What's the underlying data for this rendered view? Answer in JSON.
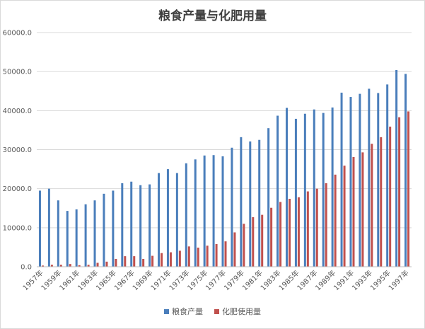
{
  "chart_data": {
    "type": "bar",
    "title": "粮食产量与化肥用量",
    "categories": [
      "1957年",
      "1958年",
      "1959年",
      "1960年",
      "1961年",
      "1962年",
      "1963年",
      "1964年",
      "1965年",
      "1966年",
      "1967年",
      "1968年",
      "1969年",
      "1970年",
      "1971年",
      "1972年",
      "1973年",
      "1974年",
      "1975年",
      "1976年",
      "1977年",
      "1978年",
      "1979年",
      "1980年",
      "1981年",
      "1982年",
      "1983年",
      "1984年",
      "1985年",
      "1986年",
      "1987年",
      "1988年",
      "1989年",
      "1990年",
      "1991年",
      "1992年",
      "1993年",
      "1994年",
      "1995年",
      "1996年",
      "1997年"
    ],
    "tick_labels": [
      "1957年",
      "1959年",
      "1961年",
      "1963年",
      "1965年",
      "1967年",
      "1969年",
      "1971年",
      "1973年",
      "1975年",
      "1977年",
      "1979年",
      "1981年",
      "1983年",
      "1985年",
      "1987年",
      "1989年",
      "1991年",
      "1993年",
      "1995年",
      "1997年"
    ],
    "series": [
      {
        "name": "粮食产量",
        "color": "#4a7ebb",
        "values": [
          19500,
          20000,
          17000,
          14300,
          14700,
          16000,
          17000,
          18700,
          19500,
          21400,
          21800,
          20900,
          21100,
          24000,
          25000,
          24000,
          26500,
          27500,
          28500,
          28600,
          28300,
          30500,
          33200,
          32100,
          32500,
          35500,
          38700,
          40700,
          37900,
          39200,
          40300,
          39400,
          40800,
          44600,
          43500,
          44300,
          45600,
          44500,
          46700,
          50400,
          49400
        ]
      },
      {
        "name": "化肥使用量",
        "color": "#c0504d",
        "values": [
          300,
          500,
          500,
          700,
          400,
          500,
          1000,
          1300,
          2000,
          2700,
          2700,
          2000,
          2800,
          3500,
          3700,
          4100,
          5200,
          4900,
          5400,
          5800,
          6500,
          8800,
          11000,
          12700,
          13300,
          15100,
          16600,
          17400,
          17800,
          19300,
          20000,
          21400,
          23600,
          25900,
          28100,
          29300,
          31500,
          33200,
          35900,
          38300,
          39800
        ]
      }
    ],
    "y_ticks": [
      "0.0",
      "10000.0",
      "20000.0",
      "30000.0",
      "40000.0",
      "50000.0",
      "60000.0"
    ],
    "ylim": [
      0,
      60000
    ],
    "grid": true,
    "legend_position": "bottom"
  }
}
